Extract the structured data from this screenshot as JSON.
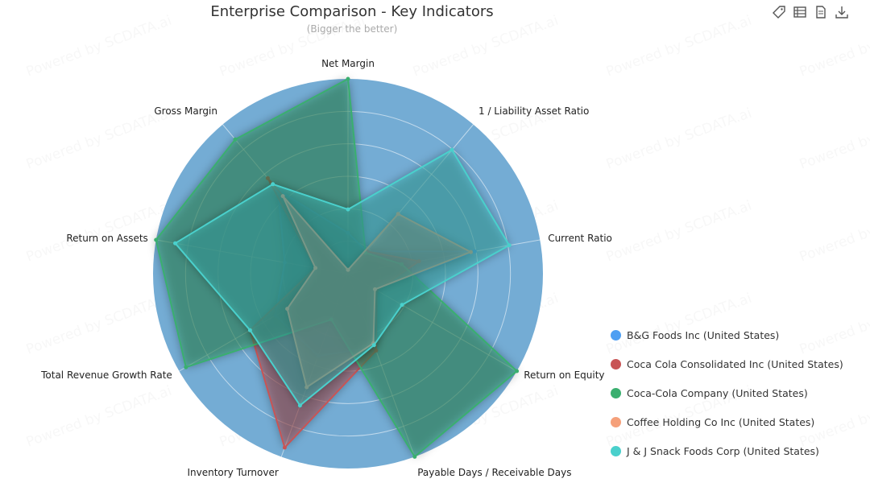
{
  "header": {
    "title": "Enterprise Comparison - Key Indicators",
    "subtitle": "(Bigger the better)"
  },
  "toolbar": {
    "icons": [
      "tag-icon",
      "data-view-icon",
      "document-icon",
      "download-icon"
    ]
  },
  "watermark": "Powered by SCDATA.ai",
  "colors": {
    "radar_background": "#74acd4",
    "B&G Foods Inc (United States)": "#4e9ff2",
    "Coca Cola Consolidated Inc (United States)": "#c85455",
    "Coca-Cola Company (United States)": "#3aaf6f",
    "Coffee Holding Co Inc (United States)": "#f5a07a",
    "J & J Snack Foods Corp (United States)": "#4ad0cc"
  },
  "chart_data": {
    "type": "radar",
    "title": "Enterprise Comparison - Key Indicators",
    "subtitle": "(Bigger the better)",
    "indicators": [
      "Net Margin",
      "1 / Liability Asset Ratio",
      "Current Ratio",
      "Return on Equity",
      "Payable Days / Receivable Days",
      "Inventory Turnover",
      "Total Revenue Growth Rate",
      "Return on Assets",
      "Gross Margin"
    ],
    "range": [
      0,
      1
    ],
    "rings": 6,
    "legend_position": "right",
    "series": [
      {
        "name": "B&G Foods Inc (United States)",
        "values": [
          0.21,
          0.15,
          0.66,
          0.16,
          0.4,
          0.45,
          0.43,
          0.33,
          0.56
        ]
      },
      {
        "name": "Coca Cola Consolidated Inc (United States)",
        "values": [
          0.02,
          0.15,
          0.37,
          0.17,
          0.42,
          0.95,
          0.58,
          0.17,
          0.64
        ]
      },
      {
        "name": "Coca-Cola Company (United States)",
        "values": [
          1.0,
          0.14,
          0.28,
          1.0,
          1.0,
          0.25,
          0.96,
          1.0,
          0.9
        ]
      },
      {
        "name": "Coffee Holding Co Inc (United States)",
        "values": [
          0.02,
          0.4,
          0.64,
          0.16,
          0.38,
          0.62,
          0.36,
          0.17,
          0.52
        ]
      },
      {
        "name": "J & J Snack Foods Corp (United States)",
        "values": [
          0.33,
          0.83,
          0.84,
          0.32,
          0.39,
          0.72,
          0.58,
          0.9,
          0.6
        ]
      }
    ]
  }
}
